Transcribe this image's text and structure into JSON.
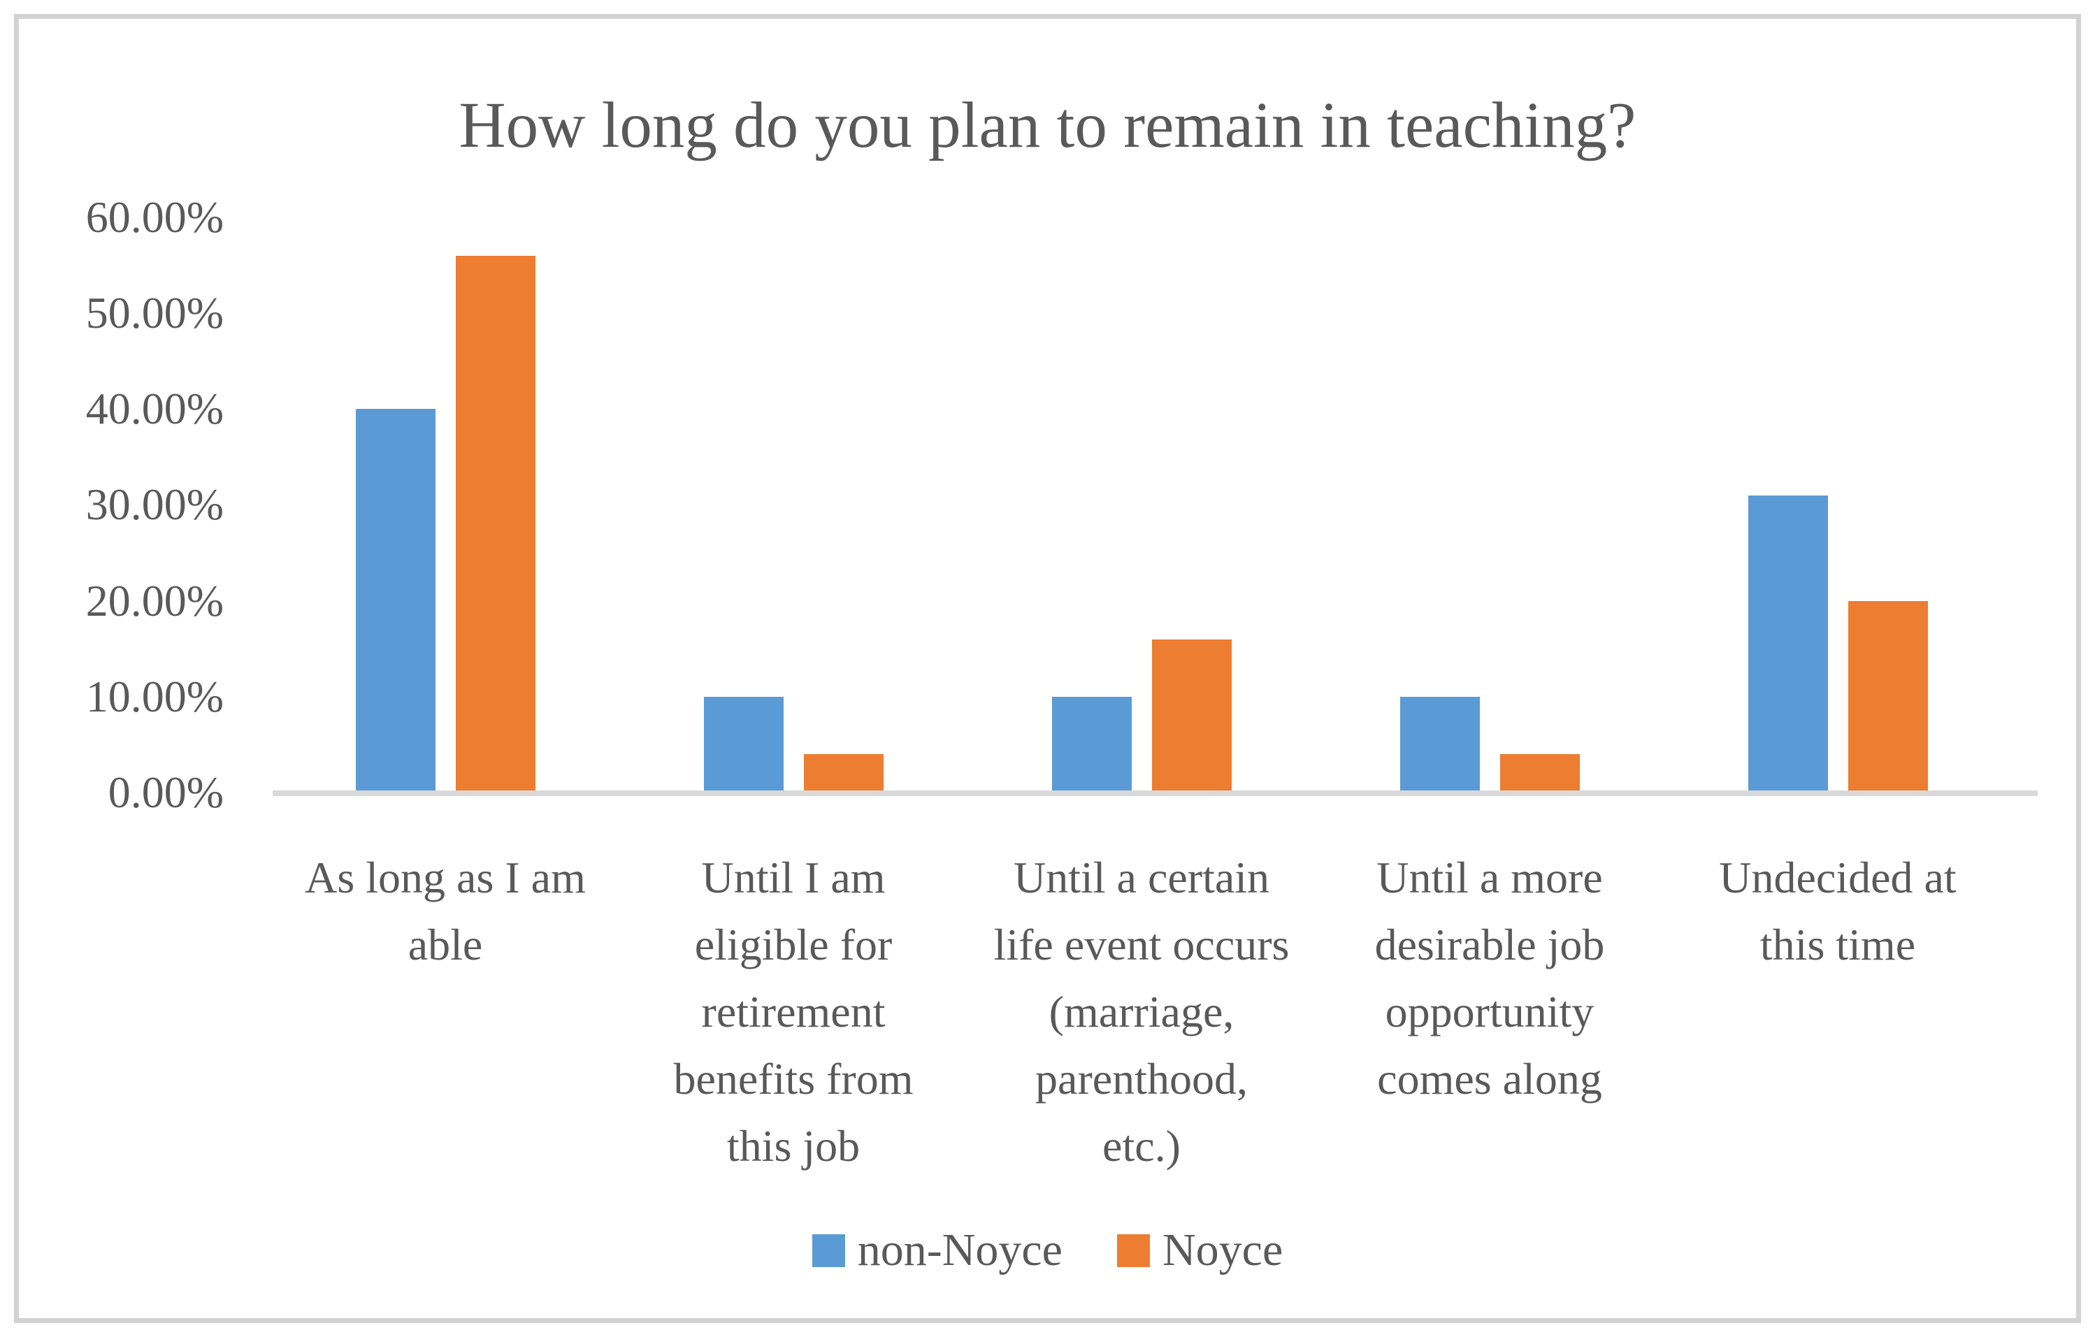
{
  "page": {
    "background": "#ffffff",
    "frame_color": "#d2d2d2",
    "text_color": "#595959"
  },
  "title": "How long do you plan to remain in teaching?",
  "chart_data": {
    "type": "bar",
    "title": "How long do you plan to remain in teaching?",
    "orientation": "vertical",
    "grid": false,
    "legend_position": "bottom",
    "axis_color": "#d9d9d9",
    "text_color": "#595959",
    "categories": [
      "As long as I am able",
      "Until I am eligible for retirement benefits from this job",
      "Until a certain life event occurs (marriage, parenthood, etc.)",
      "Until a more desirable job opportunity comes along",
      "Undecided at this time"
    ],
    "category_label_lines": [
      [
        "As long as I am",
        "able"
      ],
      [
        "Until I am",
        "eligible for",
        "retirement",
        "benefits from",
        "this job"
      ],
      [
        "Until a certain",
        "life event occurs",
        "(marriage,",
        "parenthood,",
        "etc.)"
      ],
      [
        "Until a more",
        "desirable job",
        "opportunity",
        "comes along"
      ],
      [
        "Undecided at",
        "this time"
      ]
    ],
    "series": [
      {
        "name": "non-Noyce",
        "color": "#5B9BD5",
        "values": [
          40.0,
          10.0,
          10.0,
          10.0,
          31.0
        ]
      },
      {
        "name": "Noyce",
        "color": "#ED7D31",
        "values": [
          56.0,
          4.0,
          16.0,
          4.0,
          20.0
        ]
      }
    ],
    "y_axis": {
      "min": 0,
      "max": 60,
      "step": 10,
      "unit": "%",
      "tick_labels": [
        "0.00%",
        "10.00%",
        "20.00%",
        "30.00%",
        "40.00%",
        "50.00%",
        "60.00%"
      ]
    }
  },
  "legend": {
    "items": [
      {
        "label": "non-Noyce",
        "color": "#5B9BD5"
      },
      {
        "label": "Noyce",
        "color": "#ED7D31"
      }
    ]
  }
}
